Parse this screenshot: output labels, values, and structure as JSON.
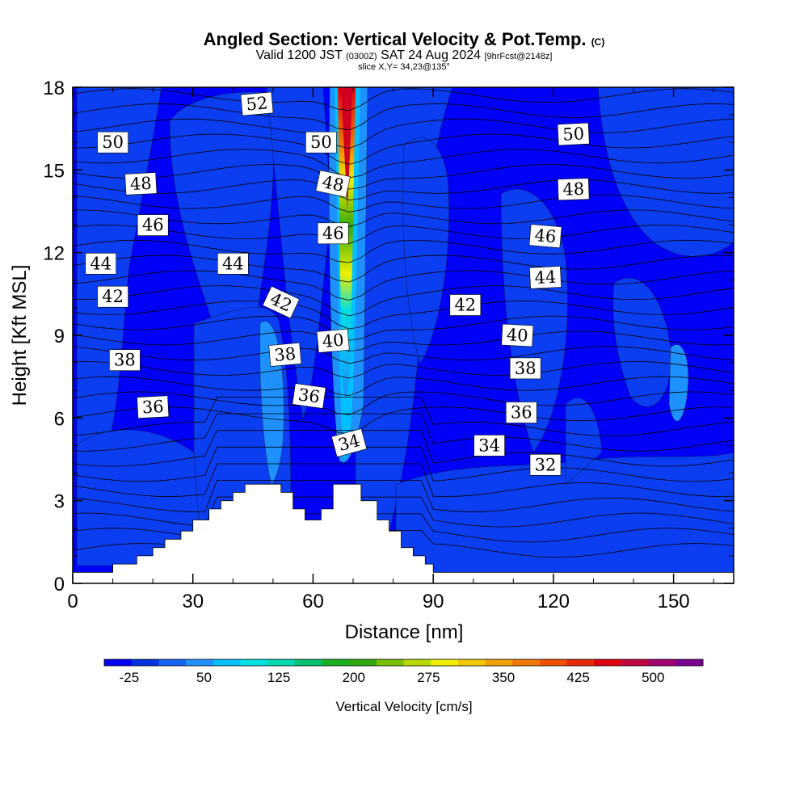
{
  "header": {
    "title": "Angled Section: Vertical Velocity & Pot.Temp.",
    "title_suffix": "(C)",
    "subtitle_a": "Valid 1200 JST",
    "subtitle_b": "(0300Z)",
    "subtitle_c": "SAT 24 Aug 2024",
    "subtitle_d": "[9hrFcst@2148z]",
    "slice": "slice X,Y= 34,23@135°"
  },
  "chart_data": {
    "type": "heatmap",
    "xlabel": "Distance [nm]",
    "ylabel": "Height [Kft MSL]",
    "xlim": [
      0,
      165
    ],
    "ylim": [
      0,
      18
    ],
    "xticks": [
      0,
      30,
      60,
      90,
      120,
      150
    ],
    "yticks": [
      0,
      3,
      6,
      9,
      12,
      15,
      18
    ],
    "colorbar": {
      "label": "Vertical Velocity [cm/s]",
      "tick_labels": [
        "-25",
        "50",
        "125",
        "200",
        "275",
        "350",
        "425",
        "500"
      ],
      "tick_values": [
        -25,
        50,
        125,
        200,
        275,
        350,
        425,
        500
      ],
      "min": -50,
      "max": 550,
      "colors": [
        "#0000f8",
        "#0033e0",
        "#1462f0",
        "#1e90ff",
        "#00c0ff",
        "#00e0e0",
        "#00d8b0",
        "#00c070",
        "#18b020",
        "#30a810",
        "#78c000",
        "#b8d800",
        "#f0f000",
        "#f0c800",
        "#f0a000",
        "#f07800",
        "#f05000",
        "#e82800",
        "#e00010",
        "#c00040",
        "#a00070",
        "#780090"
      ]
    },
    "terrain_kft": [
      [
        0,
        0.4
      ],
      [
        10,
        0.4
      ],
      [
        10,
        0.7
      ],
      [
        16,
        0.7
      ],
      [
        16,
        1.0
      ],
      [
        20,
        1.0
      ],
      [
        20,
        1.3
      ],
      [
        23,
        1.3
      ],
      [
        23,
        1.6
      ],
      [
        27,
        1.6
      ],
      [
        27,
        1.9
      ],
      [
        30,
        1.9
      ],
      [
        30,
        2.3
      ],
      [
        34,
        2.3
      ],
      [
        34,
        2.7
      ],
      [
        37,
        2.7
      ],
      [
        37,
        3.0
      ],
      [
        40,
        3.0
      ],
      [
        40,
        3.3
      ],
      [
        43,
        3.3
      ],
      [
        43,
        3.6
      ],
      [
        52,
        3.6
      ],
      [
        52,
        3.3
      ],
      [
        55,
        3.3
      ],
      [
        55,
        2.7
      ],
      [
        58,
        2.7
      ],
      [
        58,
        2.3
      ],
      [
        62,
        2.3
      ],
      [
        62,
        2.7
      ],
      [
        65,
        2.7
      ],
      [
        65,
        3.6
      ],
      [
        72,
        3.6
      ],
      [
        72,
        3.0
      ],
      [
        76,
        3.0
      ],
      [
        76,
        2.3
      ],
      [
        79,
        2.3
      ],
      [
        79,
        1.9
      ],
      [
        82,
        1.9
      ],
      [
        82,
        1.3
      ],
      [
        85,
        1.3
      ],
      [
        85,
        1.0
      ],
      [
        88,
        1.0
      ],
      [
        88,
        0.7
      ],
      [
        90,
        0.7
      ],
      [
        90,
        0.4
      ],
      [
        165,
        0.4
      ]
    ],
    "theta_labels": [
      {
        "text": "52",
        "x": 46,
        "y": 17.4,
        "angle": -5
      },
      {
        "text": "50",
        "x": 10,
        "y": 16.0,
        "angle": 0
      },
      {
        "text": "50",
        "x": 62,
        "y": 16.0,
        "angle": 0
      },
      {
        "text": "50",
        "x": 125,
        "y": 16.3,
        "angle": -3
      },
      {
        "text": "48",
        "x": 17,
        "y": 14.5,
        "angle": -3
      },
      {
        "text": "48",
        "x": 65,
        "y": 14.5,
        "angle": 12
      },
      {
        "text": "48",
        "x": 125,
        "y": 14.3,
        "angle": -2
      },
      {
        "text": "46",
        "x": 20,
        "y": 13.0,
        "angle": 0
      },
      {
        "text": "46",
        "x": 65,
        "y": 12.7,
        "angle": 0
      },
      {
        "text": "46",
        "x": 118,
        "y": 12.6,
        "angle": 5
      },
      {
        "text": "44",
        "x": 7,
        "y": 11.6,
        "angle": 0
      },
      {
        "text": "44",
        "x": 40,
        "y": 11.6,
        "angle": 0
      },
      {
        "text": "44",
        "x": 118,
        "y": 11.1,
        "angle": -3
      },
      {
        "text": "42",
        "x": 10,
        "y": 10.4,
        "angle": 0
      },
      {
        "text": "42",
        "x": 52,
        "y": 10.2,
        "angle": 25
      },
      {
        "text": "42",
        "x": 98,
        "y": 10.1,
        "angle": 0
      },
      {
        "text": "40",
        "x": 65,
        "y": 8.8,
        "angle": -5
      },
      {
        "text": "40",
        "x": 111,
        "y": 9.0,
        "angle": 3
      },
      {
        "text": "38",
        "x": 13,
        "y": 8.1,
        "angle": 0
      },
      {
        "text": "38",
        "x": 53,
        "y": 8.3,
        "angle": -5
      },
      {
        "text": "38",
        "x": 113,
        "y": 7.8,
        "angle": 0
      },
      {
        "text": "36",
        "x": 20,
        "y": 6.4,
        "angle": -3
      },
      {
        "text": "36",
        "x": 59,
        "y": 6.8,
        "angle": 8
      },
      {
        "text": "36",
        "x": 112,
        "y": 6.2,
        "angle": 0
      },
      {
        "text": "34",
        "x": 69,
        "y": 5.1,
        "angle": -15
      },
      {
        "text": "34",
        "x": 104,
        "y": 5.0,
        "angle": 0
      },
      {
        "text": "32",
        "x": 118,
        "y": 4.3,
        "angle": 0
      }
    ]
  }
}
